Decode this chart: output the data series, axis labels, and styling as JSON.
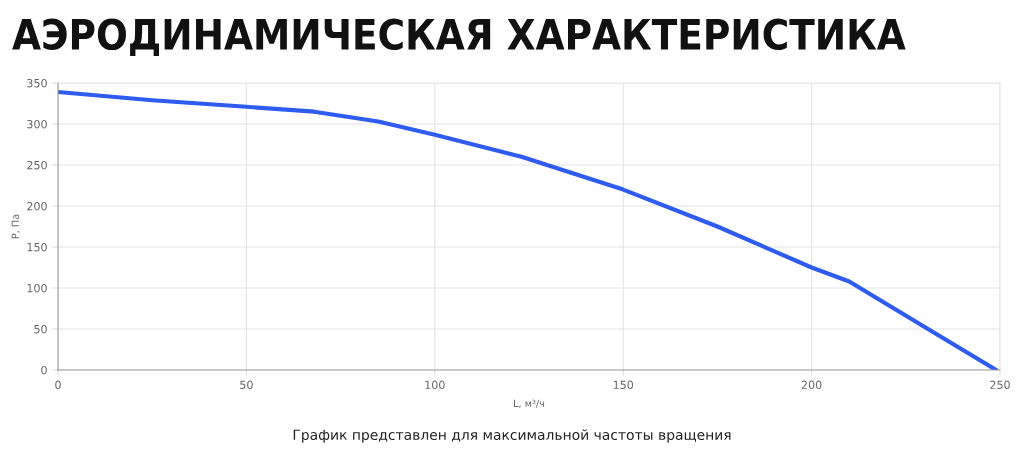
{
  "chart_data": {
    "type": "line",
    "title": "АЭРОДИНАМИЧЕСКАЯ ХАРАКТЕРИСТИКА",
    "xlabel": "L, м³/ч",
    "ylabel": "P, Па",
    "annotations": [
      "График представлен для максимальной частоты вращения"
    ],
    "x": [
      0,
      25,
      50,
      68,
      85,
      100,
      123,
      150,
      175,
      200,
      210,
      219,
      232,
      249
    ],
    "series": [
      {
        "color": "#2f5cf0",
        "values": [
          339,
          329,
          321,
          315,
          303,
          287,
          260,
          220,
          175,
          125,
          108,
          83,
          47,
          0
        ]
      }
    ],
    "xlim": [
      0,
      250
    ],
    "xticks": [
      0,
      50,
      100,
      150,
      200,
      250
    ],
    "ylim": [
      0,
      350
    ],
    "yticks": [
      0,
      50,
      100,
      150,
      200,
      250,
      300,
      350
    ],
    "grid": true,
    "marker": "none",
    "line_style": "solid"
  }
}
